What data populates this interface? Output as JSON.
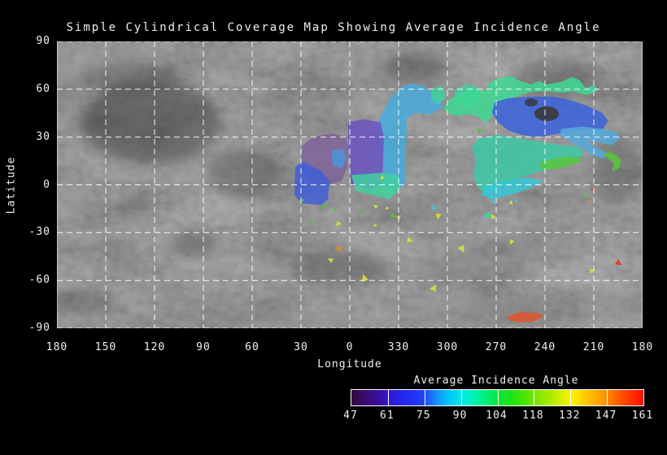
{
  "chart_data": {
    "type": "heatmap",
    "title": "Simple Cylindrical Coverage Map Showing Average Incidence Angle",
    "xlabel": "Longitude",
    "ylabel": "Latitude",
    "lon_ticks": [
      "180",
      "150",
      "120",
      "90",
      "60",
      "30",
      "0",
      "330",
      "300",
      "270",
      "240",
      "210",
      "180"
    ],
    "lat_ticks": [
      "90",
      "60",
      "30",
      "0",
      "-30",
      "-60",
      "-90"
    ],
    "lon_span_deg": 360,
    "lat_range": [
      -90,
      90
    ],
    "grid": "on",
    "basemap": "grayscale planetary surface mosaic",
    "colorbar": {
      "title": "Average Incidence Angle",
      "tick_labels": [
        "47",
        "61",
        "75",
        "90",
        "104",
        "118",
        "132",
        "147",
        "161"
      ],
      "gradient_stops": [
        [
          0,
          "#30083e"
        ],
        [
          0.05,
          "#3c0c72"
        ],
        [
          0.1,
          "#3a10a8"
        ],
        [
          0.125,
          "#3417c8"
        ],
        [
          0.16,
          "#2a22e8"
        ],
        [
          0.22,
          "#2233fa"
        ],
        [
          0.25,
          "#1e46fa"
        ],
        [
          0.29,
          "#148ef8"
        ],
        [
          0.33,
          "#02c0f8"
        ],
        [
          0.375,
          "#00e8e8"
        ],
        [
          0.42,
          "#00f2b4"
        ],
        [
          0.46,
          "#00ee7a"
        ],
        [
          0.5,
          "#0ce83c"
        ],
        [
          0.55,
          "#1ce414"
        ],
        [
          0.6,
          "#52e400"
        ],
        [
          0.625,
          "#74e600"
        ],
        [
          0.68,
          "#abe900"
        ],
        [
          0.73,
          "#e2f200"
        ],
        [
          0.76,
          "#fcf000"
        ],
        [
          0.8,
          "#ffcc00"
        ],
        [
          0.85,
          "#ffa200"
        ],
        [
          0.875,
          "#ff8a00"
        ],
        [
          0.91,
          "#ff6000"
        ],
        [
          0.95,
          "#ff3a00"
        ],
        [
          1,
          "#ff0c00"
        ]
      ],
      "n_segments": 8
    },
    "region_opacity": 0.84,
    "regions": [
      {
        "name": "cyan-band",
        "color": "#46abdc",
        "points": [
          [
            -17.5,
            40.2
          ],
          [
            -25,
            54.4
          ],
          [
            -31,
            61
          ],
          [
            -37.5,
            63.6
          ],
          [
            -45,
            62
          ],
          [
            -55,
            55.4
          ],
          [
            -57.5,
            49.3
          ],
          [
            -50,
            44.2
          ],
          [
            -40,
            45.3
          ],
          [
            -35,
            41.7
          ],
          [
            -34,
            1
          ],
          [
            -29,
            -4.1
          ],
          [
            -21,
            -1.5
          ],
          [
            -19,
            23.9
          ]
        ]
      },
      {
        "name": "purple-main",
        "color": "#6a54c2",
        "points": [
          [
            1,
            39.2
          ],
          [
            -8.5,
            41.2
          ],
          [
            -19,
            39.2
          ],
          [
            -21,
            29
          ],
          [
            -20,
            1
          ],
          [
            -12.5,
            -2.5
          ],
          [
            -1,
            -0.5
          ],
          [
            1,
            23.9
          ]
        ]
      },
      {
        "name": "mauve-left",
        "color": "#7d6398",
        "points": [
          [
            29,
            24.9
          ],
          [
            22.5,
            30
          ],
          [
            11,
            32.5
          ],
          [
            2.5,
            30
          ],
          [
            1,
            23.9
          ],
          [
            1.5,
            11.2
          ],
          [
            5,
            2.5
          ],
          [
            15,
            -0.5
          ],
          [
            26,
            2.5
          ],
          [
            30,
            13.7
          ]
        ]
      },
      {
        "name": "blue-left",
        "color": "#3f5ed6",
        "points": [
          [
            33.5,
            11.2
          ],
          [
            29,
            14.7
          ],
          [
            17.5,
            8.6
          ],
          [
            12.5,
            2.5
          ],
          [
            13.5,
            -9.2
          ],
          [
            17.5,
            -12.7
          ],
          [
            29,
            -11.7
          ],
          [
            34,
            -6.6
          ]
        ]
      },
      {
        "name": "lightblue-inset",
        "color": "#4796dc",
        "points": [
          [
            11,
            21.4
          ],
          [
            4,
            22.4
          ],
          [
            2,
            16.3
          ],
          [
            5,
            10.2
          ],
          [
            10.5,
            12.2
          ]
        ]
      },
      {
        "name": "teal-bottom-left",
        "color": "#3fd0a0",
        "points": [
          [
            -1,
            6.1
          ],
          [
            -20,
            7.6
          ],
          [
            -30,
            6.1
          ],
          [
            -31,
            -2.5
          ],
          [
            -24,
            -9.2
          ],
          [
            -15,
            -6.6
          ],
          [
            -4,
            -4.1
          ]
        ]
      },
      {
        "name": "teal-top-a",
        "color": "#3fd0a0",
        "points": [
          [
            -50,
            60.5
          ],
          [
            -57.5,
            62
          ],
          [
            -59,
            54.4
          ],
          [
            -54,
            50.3
          ],
          [
            -50,
            53.4
          ]
        ]
      },
      {
        "name": "teal-top-b",
        "color": "#3fd0a0",
        "points": [
          [
            -64,
            59.5
          ],
          [
            -72.5,
            63
          ],
          [
            -80,
            60.5
          ],
          [
            -79,
            51.9
          ],
          [
            -71,
            48.3
          ],
          [
            -65,
            51.9
          ]
        ]
      },
      {
        "name": "springgreen-band",
        "color": "#3eda92",
        "points": [
          [
            -57.5,
            47.8
          ],
          [
            -61,
            53.4
          ],
          [
            -67.5,
            56.9
          ],
          [
            -76,
            60.5
          ],
          [
            -83.5,
            58.5
          ],
          [
            -86.5,
            64.6
          ],
          [
            -91,
            66.6
          ],
          [
            -99,
            68.1
          ],
          [
            -105,
            65.1
          ],
          [
            -111,
            63
          ],
          [
            -116.5,
            65.1
          ],
          [
            -121,
            63
          ],
          [
            -130,
            64.6
          ],
          [
            -136.5,
            67.6
          ],
          [
            -141.5,
            65.6
          ],
          [
            -145,
            60.5
          ],
          [
            -150,
            62.5
          ],
          [
            -152.5,
            59.5
          ],
          [
            -146,
            56.4
          ],
          [
            -137.5,
            58.5
          ],
          [
            -130,
            58
          ],
          [
            -121,
            58.5
          ],
          [
            -112.5,
            58.5
          ],
          [
            -105,
            56.4
          ],
          [
            -99,
            53.9
          ],
          [
            -91,
            49.3
          ],
          [
            -86.5,
            41.2
          ],
          [
            -83,
            39.2
          ],
          [
            -79,
            42.7
          ],
          [
            -73.5,
            44.2
          ],
          [
            -67.5,
            43.2
          ],
          [
            -61.5,
            44.2
          ]
        ]
      },
      {
        "name": "blue-main",
        "color": "#3a62dc",
        "points": [
          [
            -89,
            51.9
          ],
          [
            -97.5,
            54.4
          ],
          [
            -110,
            55.4
          ],
          [
            -125,
            55.4
          ],
          [
            -135,
            53.4
          ],
          [
            -144,
            50.3
          ],
          [
            -155,
            45.3
          ],
          [
            -159,
            40.2
          ],
          [
            -155,
            34.1
          ],
          [
            -145,
            35.1
          ],
          [
            -135,
            33
          ],
          [
            -125,
            31.5
          ],
          [
            -115,
            30
          ],
          [
            -105,
            31.5
          ],
          [
            -97.5,
            34.1
          ],
          [
            -91,
            39.2
          ],
          [
            -87.5,
            45.3
          ]
        ]
      },
      {
        "name": "lightblue-right",
        "color": "#55aadf",
        "points": [
          [
            -130,
            35.1
          ],
          [
            -142.5,
            36.6
          ],
          [
            -155,
            35.1
          ],
          [
            -164,
            33
          ],
          [
            -166,
            29
          ],
          [
            -161,
            24.9
          ],
          [
            -154,
            26.4
          ],
          [
            -145,
            28
          ],
          [
            -152.5,
            22.9
          ],
          [
            -159,
            19.8
          ],
          [
            -156,
            16.3
          ],
          [
            -149,
            18.8
          ],
          [
            -141,
            23.9
          ],
          [
            -134,
            28
          ],
          [
            -129,
            31
          ]
        ]
      },
      {
        "name": "teal-right",
        "color": "#3cc9a4",
        "points": [
          [
            -79,
            29
          ],
          [
            -91,
            31.5
          ],
          [
            -105,
            29
          ],
          [
            -117.5,
            27
          ],
          [
            -130,
            24.9
          ],
          [
            -141,
            23.9
          ],
          [
            -144,
            18.8
          ],
          [
            -135,
            13.7
          ],
          [
            -124,
            10.2
          ],
          [
            -112.5,
            7.1
          ],
          [
            -102.5,
            3.6
          ],
          [
            -92.5,
            -1.5
          ],
          [
            -85,
            -5.6
          ],
          [
            -79,
            -2.5
          ],
          [
            -76,
            6.1
          ],
          [
            -77.5,
            16.3
          ],
          [
            -75,
            23.9
          ]
        ]
      },
      {
        "name": "cyan-strip",
        "color": "#35c8d8",
        "points": [
          [
            -82.5,
            -0.5
          ],
          [
            -95,
            2.5
          ],
          [
            -109,
            4.6
          ],
          [
            -119,
            2.5
          ],
          [
            -110,
            -2.5
          ],
          [
            -97.5,
            -6.6
          ],
          [
            -87.5,
            -9.2
          ],
          [
            -81,
            -6.6
          ]
        ]
      },
      {
        "name": "green-lens",
        "color": "#57c73a",
        "points": [
          [
            -116,
            13.7
          ],
          [
            -125,
            16.3
          ],
          [
            -135,
            17.8
          ],
          [
            -144,
            15.8
          ],
          [
            -135,
            11.7
          ],
          [
            -125,
            9.7
          ],
          [
            -117.5,
            10.2
          ]
        ]
      },
      {
        "name": "green-squiggle",
        "color": "#5ac736",
        "points": [
          [
            -159,
            20.8
          ],
          [
            -164,
            18.8
          ],
          [
            -167,
            14.7
          ],
          [
            -165,
            9.7
          ],
          [
            -161,
            8.6
          ],
          [
            -162.5,
            13.7
          ],
          [
            -159,
            16.3
          ],
          [
            -156,
            18.8
          ]
        ]
      },
      {
        "name": "orange-red-blob",
        "color": "#e0552c",
        "points": [
          [
            -96,
            -82.9
          ],
          [
            -105,
            -79.8
          ],
          [
            -116,
            -80.3
          ],
          [
            -119,
            -82.9
          ],
          [
            -112.5,
            -85.9
          ],
          [
            -104,
            -86.4
          ],
          [
            -99,
            -85.4
          ]
        ]
      }
    ],
    "patch_colors": {
      "yellow": "#d6da3e",
      "green": "#4fc23c",
      "cyan": "#3ec8e0",
      "teal": "#3fd0a0",
      "orange": "#e08a30",
      "red": "#e03828"
    },
    "small_patches": [
      [
        16,
        -13.2,
        "green",
        5
      ],
      [
        9,
        -15.3,
        "green",
        5
      ],
      [
        7,
        -24.4,
        "yellow",
        6
      ],
      [
        -7,
        -16.8,
        "green",
        5
      ],
      [
        -16,
        -13.7,
        "yellow",
        5
      ],
      [
        -26.5,
        -19.3,
        "green",
        6
      ],
      [
        -30,
        -20.3,
        "yellow",
        5
      ],
      [
        -15.5,
        -25.4,
        "yellow",
        4
      ],
      [
        -51.5,
        -14.2,
        "cyan",
        6
      ],
      [
        -54.5,
        -19.3,
        "yellow",
        7
      ],
      [
        -88.5,
        -10.7,
        "cyan",
        5
      ],
      [
        -85,
        -19.3,
        "teal",
        9
      ],
      [
        -88,
        -20.3,
        "yellow",
        6
      ],
      [
        -99,
        -11.2,
        "yellow",
        5
      ],
      [
        -102,
        -10.2,
        "cyan",
        4
      ],
      [
        -36.5,
        -34.6,
        "yellow",
        7
      ],
      [
        -69,
        -39.7,
        "yellow",
        8
      ],
      [
        -99.5,
        -35.6,
        "yellow",
        6
      ],
      [
        6.5,
        -40.2,
        "orange",
        7
      ],
      [
        11.5,
        -47.3,
        "yellow",
        6
      ],
      [
        -9,
        -59,
        "yellow",
        8
      ],
      [
        -51.5,
        -65.1,
        "yellow",
        8
      ],
      [
        -148.5,
        -53.9,
        "yellow",
        6
      ],
      [
        -165,
        -48.8,
        "red",
        7
      ],
      [
        -147.5,
        -10.7,
        "orange",
        4
      ],
      [
        -20,
        4.6,
        "yellow",
        5
      ],
      [
        -23,
        -14.7,
        "yellow",
        4
      ],
      [
        29,
        -9.7,
        "green",
        4
      ],
      [
        23.5,
        -22.9,
        "green",
        4
      ],
      [
        -148,
        60.5,
        "cyan",
        4
      ],
      [
        -149,
        -2.5,
        "red",
        4
      ],
      [
        -145,
        -6.6,
        "green",
        4
      ],
      [
        -80,
        34,
        "green",
        6
      ]
    ]
  }
}
